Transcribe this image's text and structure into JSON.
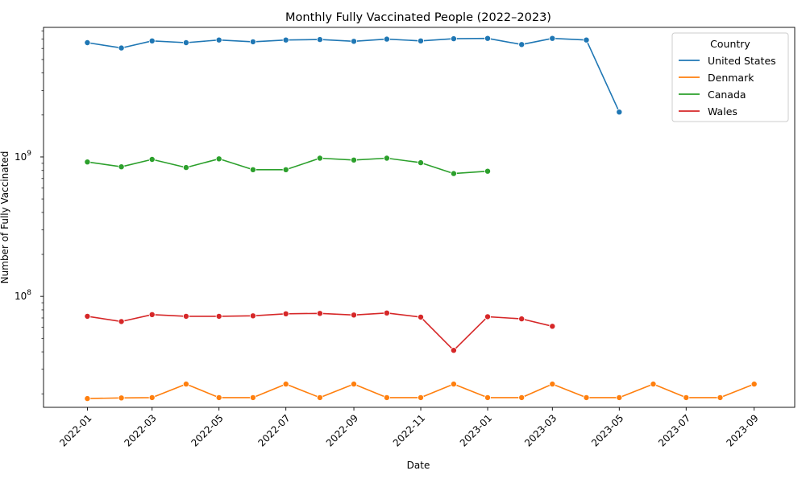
{
  "chart_data": {
    "type": "line",
    "title": "Monthly Fully Vaccinated People (2022–2023)",
    "xlabel": "Date",
    "ylabel": "Number of Fully Vaccinated",
    "yscale": "log",
    "ylim": [
      16000000,
      8500000000
    ],
    "xlim": [
      "2021-11-22",
      "2023-10-08"
    ],
    "x_ticks": [
      "2022-01",
      "2022-03",
      "2022-05",
      "2022-07",
      "2022-09",
      "2022-11",
      "2023-01",
      "2023-03",
      "2023-05",
      "2023-07",
      "2023-09"
    ],
    "y_ticks": [
      {
        "value": 100000000,
        "label": "10^8"
      },
      {
        "value": 1000000000,
        "label": "10^9"
      }
    ],
    "grid": false,
    "legend": {
      "title": "Country",
      "placement": "top-right"
    },
    "series": [
      {
        "name": "United States",
        "color": "#1f77b4",
        "points": [
          [
            "2022-01",
            6600000000
          ],
          [
            "2022-02",
            6050000000
          ],
          [
            "2022-03",
            6800000000
          ],
          [
            "2022-04",
            6600000000
          ],
          [
            "2022-05",
            6900000000
          ],
          [
            "2022-06",
            6700000000
          ],
          [
            "2022-07",
            6900000000
          ],
          [
            "2022-08",
            6950000000
          ],
          [
            "2022-09",
            6750000000
          ],
          [
            "2022-10",
            7000000000
          ],
          [
            "2022-11",
            6800000000
          ],
          [
            "2022-12",
            7050000000
          ],
          [
            "2023-01",
            7080000000
          ],
          [
            "2023-02",
            6400000000
          ],
          [
            "2023-03",
            7080000000
          ],
          [
            "2023-04",
            6900000000
          ],
          [
            "2023-05",
            2100000000
          ]
        ]
      },
      {
        "name": "Denmark",
        "color": "#ff7f0e",
        "points": [
          [
            "2022-01",
            18500000
          ],
          [
            "2022-02",
            18700000
          ],
          [
            "2022-03",
            18800000
          ],
          [
            "2022-04",
            23500000
          ],
          [
            "2022-05",
            18800000
          ],
          [
            "2022-06",
            18800000
          ],
          [
            "2022-07",
            23500000
          ],
          [
            "2022-08",
            18800000
          ],
          [
            "2022-09",
            23500000
          ],
          [
            "2022-10",
            18800000
          ],
          [
            "2022-11",
            18800000
          ],
          [
            "2022-12",
            23500000
          ],
          [
            "2023-01",
            18800000
          ],
          [
            "2023-02",
            18800000
          ],
          [
            "2023-03",
            23500000
          ],
          [
            "2023-04",
            18800000
          ],
          [
            "2023-05",
            18800000
          ],
          [
            "2023-06",
            23500000
          ],
          [
            "2023-07",
            18800000
          ],
          [
            "2023-08",
            18800000
          ],
          [
            "2023-09",
            23500000
          ]
        ]
      },
      {
        "name": "Canada",
        "color": "#2ca02c",
        "points": [
          [
            "2022-01",
            920000000
          ],
          [
            "2022-02",
            850000000
          ],
          [
            "2022-03",
            960000000
          ],
          [
            "2022-04",
            840000000
          ],
          [
            "2022-05",
            970000000
          ],
          [
            "2022-06",
            810000000
          ],
          [
            "2022-07",
            810000000
          ],
          [
            "2022-08",
            980000000
          ],
          [
            "2022-09",
            950000000
          ],
          [
            "2022-10",
            980000000
          ],
          [
            "2022-11",
            910000000
          ],
          [
            "2022-12",
            760000000
          ],
          [
            "2023-01",
            790000000
          ]
        ]
      },
      {
        "name": "Wales",
        "color": "#d62728",
        "points": [
          [
            "2022-01",
            72000000
          ],
          [
            "2022-02",
            66000000
          ],
          [
            "2022-03",
            74000000
          ],
          [
            "2022-04",
            72000000
          ],
          [
            "2022-05",
            72000000
          ],
          [
            "2022-06",
            72500000
          ],
          [
            "2022-07",
            75000000
          ],
          [
            "2022-08",
            75500000
          ],
          [
            "2022-09",
            73500000
          ],
          [
            "2022-10",
            76000000
          ],
          [
            "2022-11",
            71000000
          ],
          [
            "2022-12",
            41000000
          ],
          [
            "2023-01",
            71500000
          ],
          [
            "2023-02",
            69000000
          ],
          [
            "2023-03",
            61000000
          ]
        ]
      }
    ]
  }
}
